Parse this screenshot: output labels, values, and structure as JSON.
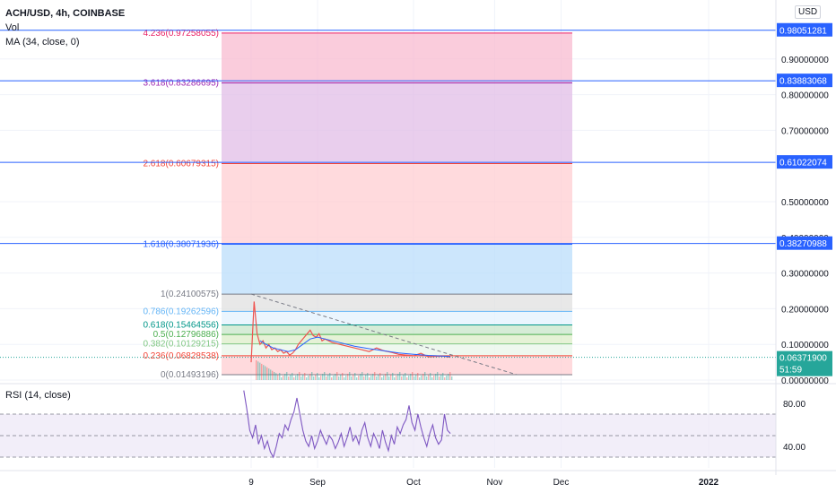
{
  "header": {
    "symbol": "ACH/USD, 4h, COINBASE",
    "vol": "Vol",
    "ma": "MA (34, close, 0)"
  },
  "currency": "USD",
  "rsi_title": "RSI (14, close)",
  "countdown": "51:59",
  "colors": {
    "grid": "#f0f3fa",
    "hline": "#2962ff",
    "price_line": "#26a69a",
    "candle_up": "#26a69a",
    "candle_down": "#ef5350",
    "ma": "#2962ff",
    "rsi_line": "#7e57c2",
    "rsi_band": "#ede7f6"
  },
  "chart_data": {
    "type": "line",
    "y_axis": {
      "ticks": [
        "0.90000000",
        "0.80000000",
        "0.70000000",
        "0.50000000",
        "0.40000000",
        "0.30000000",
        "0.20000000",
        "0.10000000",
        "0.00000000"
      ],
      "tick_values": [
        0.9,
        0.8,
        0.7,
        0.5,
        0.4,
        0.3,
        0.2,
        0.1,
        0.0
      ],
      "range": [
        0.0,
        1.0
      ]
    },
    "x_axis": {
      "ticks": [
        "9",
        "Sep",
        "Oct",
        "Nov",
        "Dec",
        "2022"
      ],
      "tick_positions": [
        8.9,
        9.35,
        10.0,
        10.55,
        11.0,
        12.0
      ]
    },
    "price_labels": [
      {
        "value": 0.98051281,
        "text": "0.98051281"
      },
      {
        "value": 0.83883068,
        "text": "0.83883068"
      },
      {
        "value": 0.61022074,
        "text": "0.61022074"
      },
      {
        "value": 0.38270988,
        "text": "0.38270988"
      }
    ],
    "current_price": {
      "value": 0.063719,
      "text": "0.06371900"
    },
    "fib_levels": [
      {
        "ratio": "4.236",
        "value": 0.97258055,
        "label": "4.236(0.97258055)",
        "color": "#e91e63",
        "fill": "#f8bbd0"
      },
      {
        "ratio": "3.618",
        "value": 0.83286695,
        "label": "3.618(0.83286695)",
        "color": "#9c27b0",
        "fill": "#e1bee7"
      },
      {
        "ratio": "2.618",
        "value": 0.60679315,
        "label": "2.618(0.60679315)",
        "color": "#f44336",
        "fill": "#ffcdd2"
      },
      {
        "ratio": "1.618",
        "value": 0.38071936,
        "label": "1.618(0.38071936)",
        "color": "#2962ff",
        "fill": "#bbdefb"
      },
      {
        "ratio": "1",
        "value": 0.24100575,
        "label": "1(0.24100575)",
        "color": "#787b86",
        "fill": "#e0e0e0"
      },
      {
        "ratio": "0.786",
        "value": 0.19262596,
        "label": "0.786(0.19262596)",
        "color": "#64b5f6",
        "fill": "#e3f2fd"
      },
      {
        "ratio": "0.618",
        "value": 0.15464556,
        "label": "0.618(0.15464556)",
        "color": "#009688",
        "fill": "#c8e6c9"
      },
      {
        "ratio": "0.5",
        "value": 0.12796886,
        "label": "0.5(0.12796886)",
        "color": "#4caf50",
        "fill": "#dcedc8"
      },
      {
        "ratio": "0.382",
        "value": 0.10129215,
        "label": "0.382(0.10129215)",
        "color": "#81c784",
        "fill": "#e8f5e9"
      },
      {
        "ratio": "0.236",
        "value": 0.06828538,
        "label": "0.236(0.06828538)",
        "color": "#f44336",
        "fill": "#ffcdd2"
      },
      {
        "ratio": "0",
        "value": 0.01493196,
        "label": "0(0.01493196)",
        "color": "#787b86",
        "fill": "#ffffff"
      }
    ],
    "horizontal_lines": [
      0.98051281,
      0.83883068,
      0.61022074,
      0.38270988
    ],
    "trendline": {
      "start": {
        "t": 8.9,
        "v": 0.241
      },
      "end": {
        "t": 10.7,
        "v": 0.015
      }
    },
    "price_series": {
      "t": [
        8.9,
        8.92,
        8.94,
        8.96,
        8.98,
        9.0,
        9.02,
        9.04,
        9.06,
        9.08,
        9.1,
        9.12,
        9.14,
        9.16,
        9.18,
        9.2,
        9.22,
        9.24,
        9.26,
        9.28,
        9.3,
        9.32,
        9.34,
        9.36,
        9.38,
        9.4,
        9.45,
        9.5,
        9.55,
        9.6,
        9.65,
        9.7,
        9.75,
        9.8,
        9.85,
        9.9,
        9.95,
        10.0,
        10.05,
        10.1,
        10.15,
        10.2,
        10.25
      ],
      "v": [
        0.05,
        0.22,
        0.13,
        0.1,
        0.11,
        0.09,
        0.1,
        0.085,
        0.09,
        0.08,
        0.085,
        0.075,
        0.08,
        0.07,
        0.075,
        0.085,
        0.1,
        0.11,
        0.12,
        0.13,
        0.14,
        0.125,
        0.12,
        0.13,
        0.11,
        0.115,
        0.105,
        0.1,
        0.095,
        0.09,
        0.085,
        0.08,
        0.09,
        0.082,
        0.078,
        0.072,
        0.07,
        0.068,
        0.075,
        0.065,
        0.066,
        0.067,
        0.064
      ]
    },
    "ma_series": {
      "t": [
        8.96,
        9.0,
        9.05,
        9.1,
        9.15,
        9.2,
        9.25,
        9.3,
        9.35,
        9.4,
        9.5,
        9.6,
        9.7,
        9.8,
        9.9,
        10.0,
        10.1,
        10.2,
        10.25
      ],
      "v": [
        0.11,
        0.1,
        0.09,
        0.085,
        0.08,
        0.085,
        0.1,
        0.115,
        0.12,
        0.115,
        0.105,
        0.095,
        0.088,
        0.082,
        0.076,
        0.072,
        0.069,
        0.067,
        0.066
      ]
    },
    "rsi": {
      "levels": [
        70,
        50,
        30
      ],
      "ticks": [
        "80.00",
        "40.00"
      ],
      "tick_values": [
        80,
        40
      ],
      "range": [
        20,
        95
      ],
      "t": [
        8.85,
        8.87,
        8.89,
        8.91,
        8.93,
        8.95,
        8.97,
        8.99,
        9.01,
        9.03,
        9.05,
        9.07,
        9.09,
        9.11,
        9.13,
        9.15,
        9.17,
        9.19,
        9.21,
        9.23,
        9.25,
        9.27,
        9.29,
        9.31,
        9.33,
        9.35,
        9.37,
        9.39,
        9.41,
        9.43,
        9.45,
        9.47,
        9.49,
        9.51,
        9.53,
        9.55,
        9.57,
        9.59,
        9.61,
        9.63,
        9.65,
        9.67,
        9.69,
        9.71,
        9.73,
        9.75,
        9.77,
        9.79,
        9.81,
        9.83,
        9.85,
        9.87,
        9.89,
        9.91,
        9.93,
        9.95,
        9.97,
        9.99,
        10.01,
        10.03,
        10.05,
        10.07,
        10.09,
        10.11,
        10.13,
        10.15,
        10.17,
        10.19,
        10.21,
        10.23,
        10.25
      ],
      "v": [
        92,
        75,
        55,
        48,
        60,
        42,
        50,
        38,
        45,
        35,
        30,
        40,
        52,
        48,
        60,
        55,
        65,
        72,
        85,
        70,
        55,
        45,
        40,
        50,
        38,
        45,
        55,
        48,
        42,
        50,
        46,
        38,
        44,
        52,
        40,
        48,
        58,
        45,
        50,
        42,
        55,
        62,
        48,
        40,
        52,
        46,
        38,
        55,
        44,
        36,
        50,
        42,
        58,
        52,
        60,
        65,
        78,
        62,
        55,
        70,
        58,
        48,
        40,
        52,
        60,
        48,
        42,
        46,
        70,
        55,
        52
      ]
    }
  }
}
